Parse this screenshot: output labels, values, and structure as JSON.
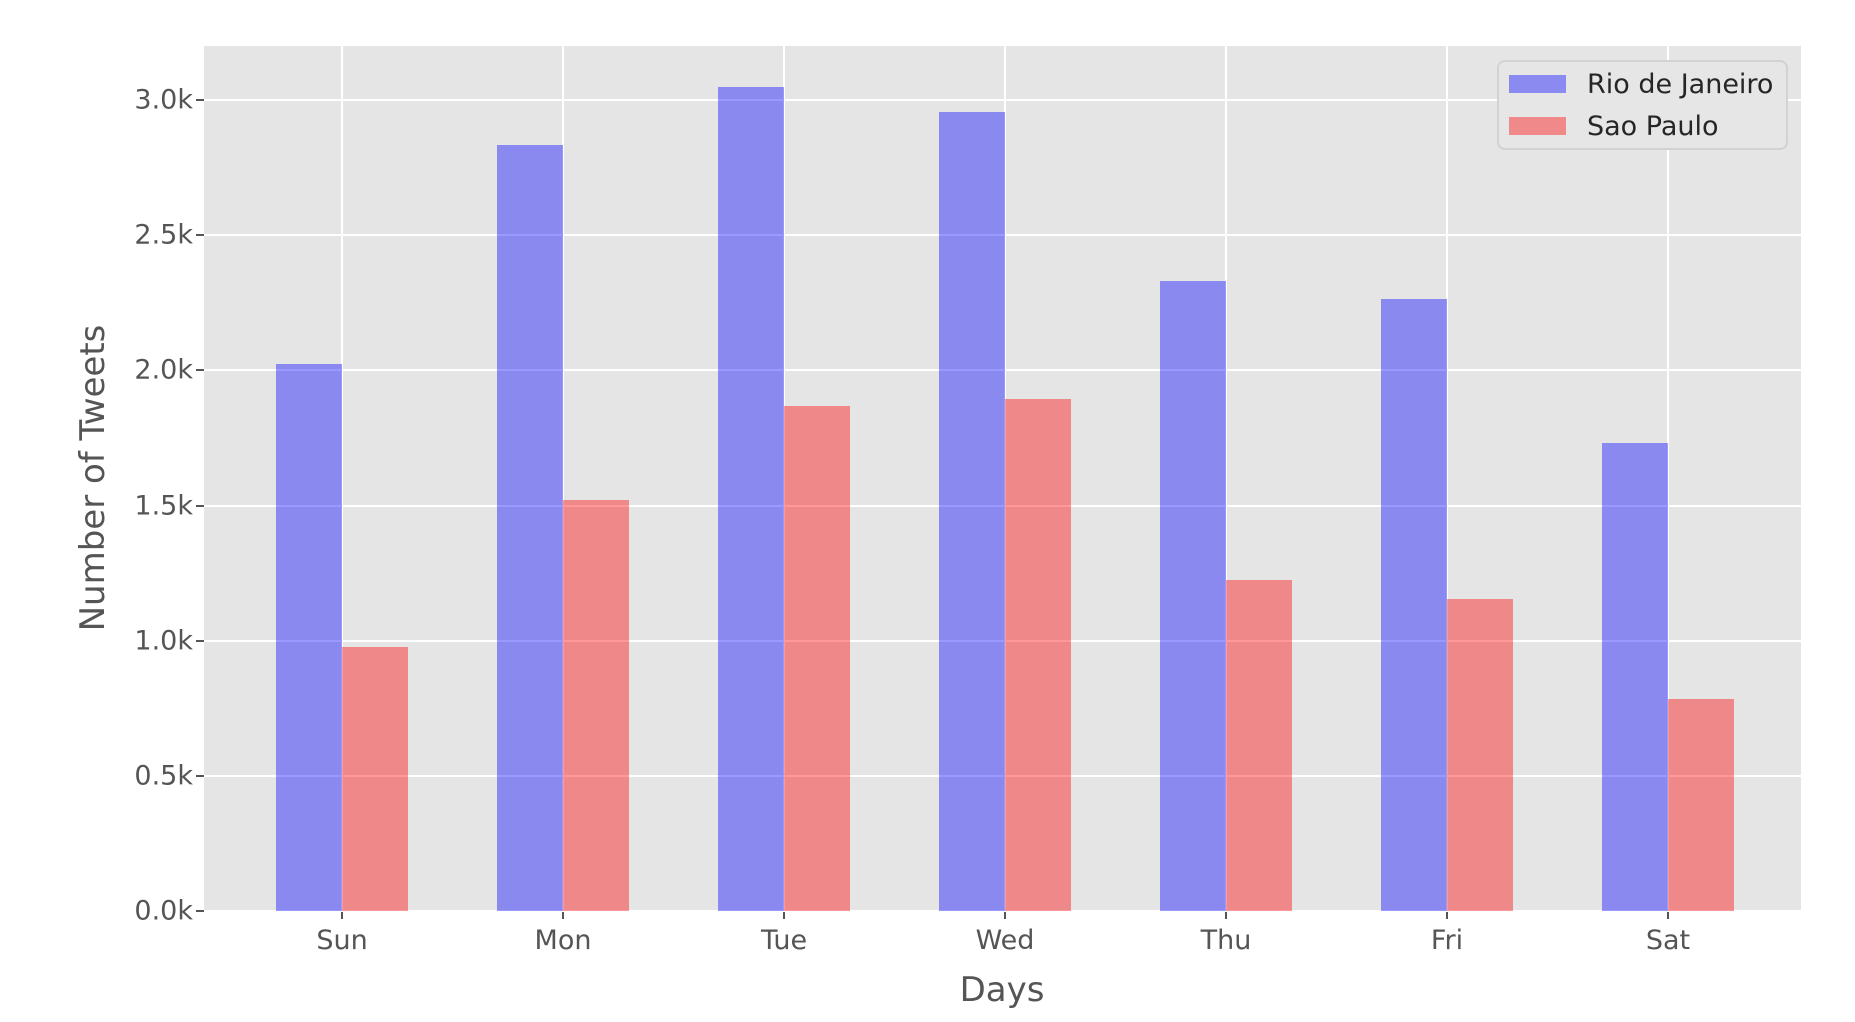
{
  "chart_data": {
    "type": "bar",
    "title": "",
    "xlabel": "Days",
    "ylabel": "Number of Tweets",
    "categories": [
      "Sun",
      "Mon",
      "Tue",
      "Wed",
      "Thu",
      "Fri",
      "Sat"
    ],
    "series": [
      {
        "name": "Rio de Janeiro",
        "color": "rgba(0,0,255,0.4)",
        "values": [
          2025,
          2835,
          3050,
          2955,
          2330,
          2265,
          1730
        ]
      },
      {
        "name": "Sao Paulo",
        "color": "rgba(255,0,0,0.4)",
        "values": [
          975,
          1520,
          1870,
          1895,
          1225,
          1155,
          785
        ]
      }
    ],
    "ylim": [
      0,
      3200
    ],
    "ytick_values": [
      0,
      500,
      1000,
      1500,
      2000,
      2500,
      3000
    ],
    "ytick_labels": [
      "0.0k",
      "0.5k",
      "1.0k",
      "1.5k",
      "2.0k",
      "2.5k",
      "3.0k"
    ],
    "grid": true,
    "grid_color": "#ffffff",
    "plot_background": "#e5e5e5",
    "figure_background": "#ffffff",
    "tick_text_color": "#555555",
    "legend_text_color": "#262626",
    "legend_position": "upper right"
  }
}
